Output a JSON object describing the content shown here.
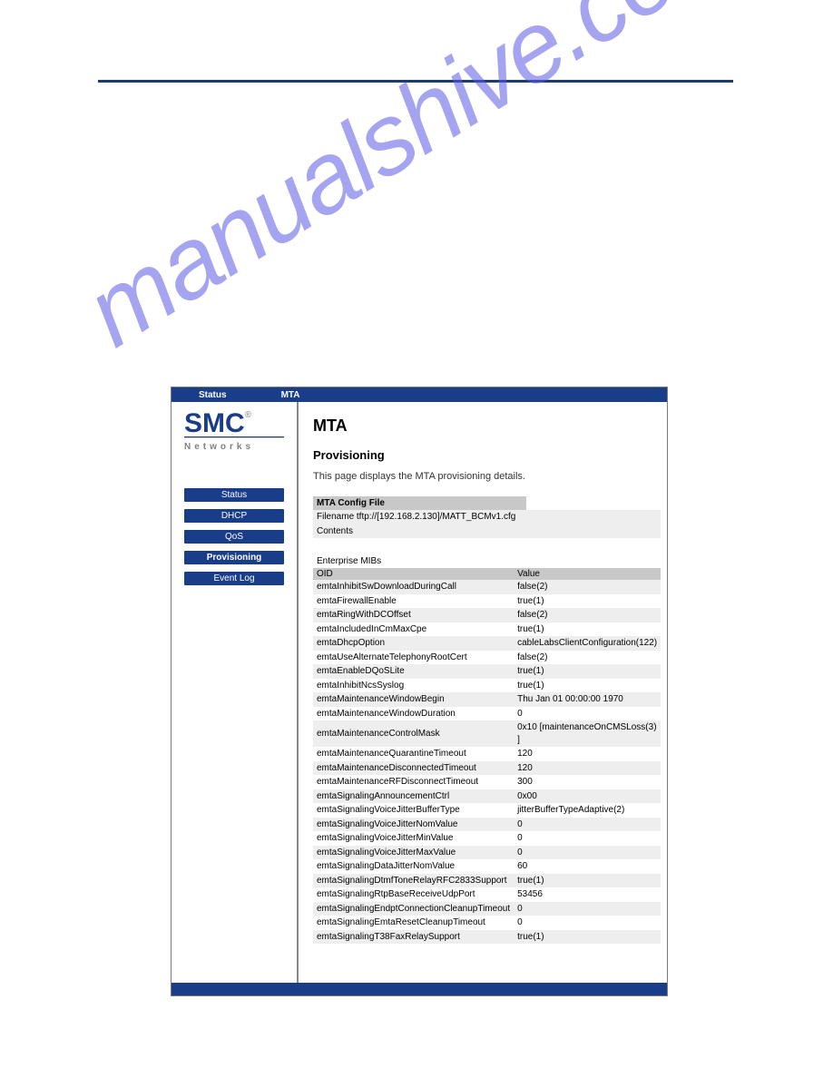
{
  "watermark_text": "manualshive.com",
  "topbar": {
    "status": "Status",
    "mta": "MTA"
  },
  "logo": {
    "brand": "SMC",
    "reg": "®",
    "sub": "Networks"
  },
  "nav": {
    "items": [
      {
        "label": "Status",
        "active": false
      },
      {
        "label": "DHCP",
        "active": false
      },
      {
        "label": "QoS",
        "active": false
      },
      {
        "label": "Provisioning",
        "active": true
      },
      {
        "label": "Event Log",
        "active": false
      }
    ]
  },
  "main": {
    "title": "MTA",
    "subtitle": "Provisioning",
    "description": "This page displays the MTA provisioning details."
  },
  "config": {
    "header": "MTA Config File",
    "filename_label": "Filename tftp://[192.168.2.130]/MATT_BCMv1.cfg",
    "contents_label": "Contents"
  },
  "mibs": {
    "title": "Enterprise MIBs",
    "col_oid": "OID",
    "col_value": "Value",
    "rows": [
      {
        "oid": "emtaInhibitSwDownloadDuringCall",
        "value": "false(2)"
      },
      {
        "oid": "emtaFirewallEnable",
        "value": "true(1)"
      },
      {
        "oid": "emtaRingWithDCOffset",
        "value": "false(2)"
      },
      {
        "oid": "emtaIncludedInCmMaxCpe",
        "value": "true(1)"
      },
      {
        "oid": "emtaDhcpOption",
        "value": "cableLabsClientConfiguration(122)"
      },
      {
        "oid": "emtaUseAlternateTelephonyRootCert",
        "value": "false(2)"
      },
      {
        "oid": "emtaEnableDQoSLite",
        "value": "true(1)"
      },
      {
        "oid": "emtaInhibitNcsSyslog",
        "value": "true(1)"
      },
      {
        "oid": "emtaMaintenanceWindowBegin",
        "value": "Thu Jan 01 00:00:00 1970"
      },
      {
        "oid": "emtaMaintenanceWindowDuration",
        "value": "0"
      },
      {
        "oid": "emtaMaintenanceControlMask",
        "value": "0x10 [maintenanceOnCMSLoss(3) ]"
      },
      {
        "oid": "emtaMaintenanceQuarantineTimeout",
        "value": "120"
      },
      {
        "oid": "emtaMaintenanceDisconnectedTimeout",
        "value": "120"
      },
      {
        "oid": "emtaMaintenanceRFDisconnectTimeout",
        "value": "300"
      },
      {
        "oid": "emtaSignalingAnnouncementCtrl",
        "value": "0x00"
      },
      {
        "oid": "emtaSignalingVoiceJitterBufferType",
        "value": "jitterBufferTypeAdaptive(2)"
      },
      {
        "oid": "emtaSignalingVoiceJitterNomValue",
        "value": "0"
      },
      {
        "oid": "emtaSignalingVoiceJitterMinValue",
        "value": "0"
      },
      {
        "oid": "emtaSignalingVoiceJitterMaxValue",
        "value": "0"
      },
      {
        "oid": "emtaSignalingDataJitterNomValue",
        "value": "60"
      },
      {
        "oid": "emtaSignalingDtmfToneRelayRFC2833Support",
        "value": "true(1)"
      },
      {
        "oid": "emtaSignalingRtpBaseReceiveUdpPort",
        "value": "53456"
      },
      {
        "oid": "emtaSignalingEndptConnectionCleanupTimeout",
        "value": "0"
      },
      {
        "oid": "emtaSignalingEmtaResetCleanupTimeout",
        "value": "0"
      },
      {
        "oid": "emtaSignalingT38FaxRelaySupport",
        "value": "true(1)"
      }
    ]
  },
  "colors": {
    "header_rule": "#1a3d6e",
    "brand_blue": "#1a3d8a",
    "table_header_bg": "#c8c8c8",
    "row_alt_bg": "#eeeeee",
    "watermark": "rgba(90,90,230,0.55)"
  }
}
